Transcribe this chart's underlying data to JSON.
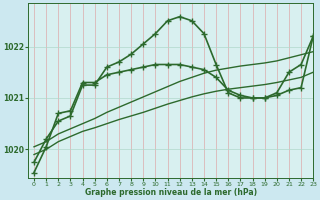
{
  "bg_color": "#cce8f0",
  "plot_bg_color": "#d8f0f0",
  "line_color": "#2d6a2d",
  "grid_color": "#b0d8cc",
  "xlabel": "Graphe pression niveau de la mer (hPa)",
  "xlim": [
    -0.5,
    23
  ],
  "ylim": [
    1019.45,
    1022.85
  ],
  "yticks": [
    1020,
    1021,
    1022
  ],
  "xticks": [
    0,
    1,
    2,
    3,
    4,
    5,
    6,
    7,
    8,
    9,
    10,
    11,
    12,
    13,
    14,
    15,
    16,
    17,
    18,
    19,
    20,
    21,
    22,
    23
  ],
  "series": [
    {
      "x": [
        0,
        1,
        2,
        3,
        4,
        5,
        6,
        7,
        8,
        9,
        10,
        11,
        12,
        13,
        14,
        15,
        16,
        17,
        18,
        19,
        20,
        21,
        22,
        23
      ],
      "y": [
        1019.75,
        1020.2,
        1020.55,
        1020.65,
        1021.25,
        1021.25,
        1021.6,
        1021.7,
        1021.85,
        1022.05,
        1022.25,
        1022.5,
        1022.58,
        1022.5,
        1022.25,
        1021.65,
        1021.1,
        1021.0,
        1021.0,
        1021.0,
        1021.1,
        1021.5,
        1021.65,
        1022.2
      ],
      "has_markers": true,
      "linewidth": 1.2
    },
    {
      "x": [
        0,
        1,
        2,
        3,
        4,
        5,
        6,
        7,
        8,
        9,
        10,
        11,
        12,
        13,
        14,
        15,
        16,
        17,
        18,
        19,
        20,
        21,
        22,
        23
      ],
      "y": [
        1019.55,
        1020.05,
        1020.7,
        1020.75,
        1021.3,
        1021.3,
        1021.45,
        1021.5,
        1021.55,
        1021.6,
        1021.65,
        1021.65,
        1021.65,
        1021.6,
        1021.55,
        1021.4,
        1021.15,
        1021.05,
        1021.0,
        1021.0,
        1021.05,
        1021.15,
        1021.2,
        1022.2
      ],
      "has_markers": true,
      "linewidth": 1.2
    },
    {
      "x": [
        0,
        1,
        2,
        3,
        4,
        5,
        6,
        7,
        8,
        9,
        10,
        11,
        12,
        13,
        14,
        15,
        16,
        17,
        18,
        19,
        20,
        21,
        22,
        23
      ],
      "y": [
        1020.05,
        1020.15,
        1020.3,
        1020.4,
        1020.5,
        1020.6,
        1020.72,
        1020.82,
        1020.92,
        1021.02,
        1021.12,
        1021.22,
        1021.32,
        1021.4,
        1021.48,
        1021.54,
        1021.58,
        1021.62,
        1021.65,
        1021.68,
        1021.72,
        1021.78,
        1021.84,
        1021.9
      ],
      "has_markers": false,
      "linewidth": 1.0
    },
    {
      "x": [
        0,
        1,
        2,
        3,
        4,
        5,
        6,
        7,
        8,
        9,
        10,
        11,
        12,
        13,
        14,
        15,
        16,
        17,
        18,
        19,
        20,
        21,
        22,
        23
      ],
      "y": [
        1019.9,
        1020.0,
        1020.15,
        1020.25,
        1020.35,
        1020.42,
        1020.5,
        1020.58,
        1020.65,
        1020.72,
        1020.8,
        1020.88,
        1020.95,
        1021.02,
        1021.08,
        1021.13,
        1021.17,
        1021.2,
        1021.23,
        1021.26,
        1021.3,
        1021.35,
        1021.4,
        1021.5
      ],
      "has_markers": false,
      "linewidth": 1.0
    }
  ]
}
